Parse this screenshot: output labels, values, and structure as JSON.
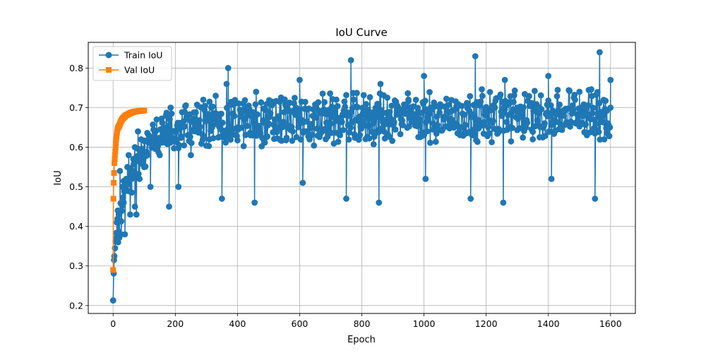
{
  "chart_data": {
    "type": "line",
    "title": "IoU Curve",
    "xlabel": "Epoch",
    "ylabel": "IoU",
    "xlim": [
      -80,
      1680
    ],
    "ylim": [
      0.18,
      0.865
    ],
    "xticks": [
      0,
      200,
      400,
      600,
      800,
      1000,
      1200,
      1400,
      1600
    ],
    "yticks": [
      0.2,
      0.3,
      0.4,
      0.5,
      0.6,
      0.7,
      0.8
    ],
    "grid": true,
    "legend_position": "upper-left",
    "colors": {
      "train": "#1f77b4",
      "val": "#ff7f0e"
    },
    "series": [
      {
        "name": "Train IoU",
        "marker": "circle",
        "x_range": [
          0,
          1600
        ],
        "points": [
          [
            0,
            0.213
          ],
          [
            3,
            0.315
          ],
          [
            6,
            0.345
          ],
          [
            9,
            0.37
          ],
          [
            12,
            0.41
          ],
          [
            15,
            0.44
          ],
          [
            18,
            0.43
          ],
          [
            22,
            0.54
          ],
          [
            26,
            0.38
          ],
          [
            30,
            0.5
          ],
          [
            34,
            0.46
          ],
          [
            38,
            0.38
          ],
          [
            42,
            0.52
          ],
          [
            46,
            0.55
          ],
          [
            50,
            0.58
          ],
          [
            55,
            0.43
          ],
          [
            60,
            0.52
          ],
          [
            65,
            0.57
          ],
          [
            70,
            0.45
          ],
          [
            75,
            0.43
          ],
          [
            80,
            0.64
          ],
          [
            85,
            0.52
          ],
          [
            90,
            0.62
          ],
          [
            100,
            0.55
          ],
          [
            110,
            0.58
          ],
          [
            120,
            0.5
          ],
          [
            130,
            0.6
          ],
          [
            140,
            0.67
          ],
          [
            150,
            0.58
          ],
          [
            160,
            0.63
          ],
          [
            170,
            0.68
          ],
          [
            180,
            0.45
          ],
          [
            185,
            0.7
          ],
          [
            195,
            0.62
          ],
          [
            210,
            0.5
          ],
          [
            230,
            0.69
          ],
          [
            250,
            0.58
          ],
          [
            270,
            0.65
          ],
          [
            290,
            0.72
          ],
          [
            310,
            0.62
          ],
          [
            330,
            0.73
          ],
          [
            350,
            0.47
          ],
          [
            365,
            0.76
          ],
          [
            370,
            0.8
          ],
          [
            400,
            0.65
          ],
          [
            430,
            0.7
          ],
          [
            455,
            0.46
          ],
          [
            460,
            0.74
          ],
          [
            500,
            0.66
          ],
          [
            550,
            0.72
          ],
          [
            600,
            0.77
          ],
          [
            610,
            0.51
          ],
          [
            650,
            0.7
          ],
          [
            700,
            0.66
          ],
          [
            750,
            0.47
          ],
          [
            765,
            0.82
          ],
          [
            800,
            0.68
          ],
          [
            855,
            0.46
          ],
          [
            860,
            0.76
          ],
          [
            900,
            0.66
          ],
          [
            950,
            0.72
          ],
          [
            1000,
            0.78
          ],
          [
            1005,
            0.52
          ],
          [
            1050,
            0.7
          ],
          [
            1100,
            0.66
          ],
          [
            1150,
            0.47
          ],
          [
            1165,
            0.83
          ],
          [
            1200,
            0.68
          ],
          [
            1255,
            0.46
          ],
          [
            1260,
            0.77
          ],
          [
            1300,
            0.7
          ],
          [
            1350,
            0.62
          ],
          [
            1400,
            0.78
          ],
          [
            1410,
            0.52
          ],
          [
            1450,
            0.68
          ],
          [
            1500,
            0.74
          ],
          [
            1550,
            0.47
          ],
          [
            1565,
            0.84
          ],
          [
            1580,
            0.62
          ],
          [
            1600,
            0.77
          ]
        ]
      },
      {
        "name": "Val IoU",
        "marker": "square",
        "x_range": [
          0,
          100
        ],
        "points": [
          [
            0,
            0.29
          ],
          [
            1,
            0.47
          ],
          [
            2,
            0.51
          ],
          [
            4,
            0.56
          ],
          [
            6,
            0.58
          ],
          [
            8,
            0.6
          ],
          [
            10,
            0.62
          ],
          [
            12,
            0.635
          ],
          [
            14,
            0.645
          ],
          [
            16,
            0.65
          ],
          [
            20,
            0.655
          ],
          [
            25,
            0.665
          ],
          [
            30,
            0.672
          ],
          [
            40,
            0.68
          ],
          [
            50,
            0.684
          ],
          [
            60,
            0.688
          ],
          [
            70,
            0.69
          ],
          [
            80,
            0.691
          ],
          [
            90,
            0.692
          ],
          [
            100,
            0.693
          ]
        ]
      }
    ]
  }
}
